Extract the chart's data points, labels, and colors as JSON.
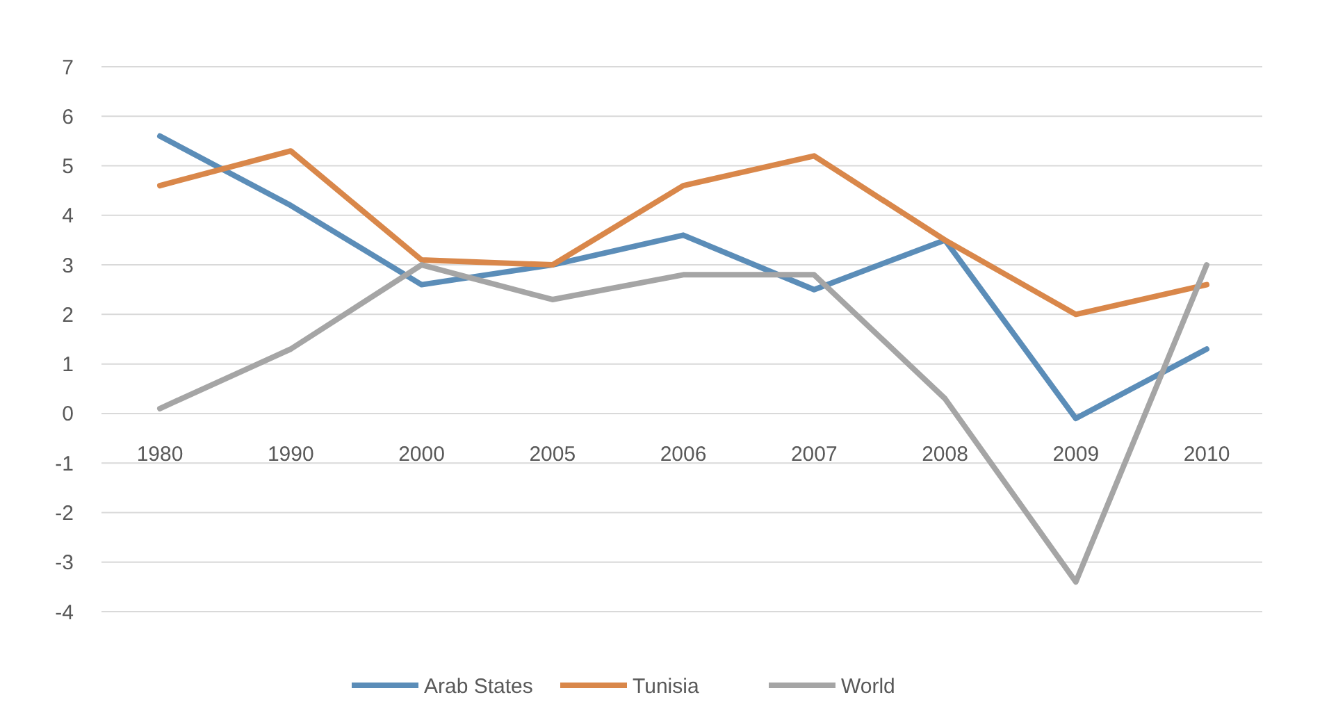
{
  "chart_data": {
    "type": "line",
    "categories": [
      "1980",
      "1990",
      "2000",
      "2005",
      "2006",
      "2007",
      "2008",
      "2009",
      "2010"
    ],
    "series": [
      {
        "name": "Arab States",
        "color": "#5b8db8",
        "values": [
          5.6,
          4.2,
          2.6,
          3.0,
          3.6,
          2.5,
          3.5,
          -0.1,
          1.3
        ]
      },
      {
        "name": "Tunisia",
        "color": "#d9874a",
        "values": [
          4.6,
          5.3,
          3.1,
          3.0,
          4.6,
          5.2,
          3.5,
          2.0,
          2.6
        ]
      },
      {
        "name": "World",
        "color": "#a5a5a5",
        "values": [
          0.1,
          1.3,
          3.0,
          2.3,
          2.8,
          2.8,
          0.3,
          -3.4,
          3.0
        ]
      }
    ],
    "ylim": [
      -4,
      7
    ],
    "yticks": [
      -4,
      -3,
      -2,
      -1,
      0,
      1,
      2,
      3,
      4,
      5,
      6,
      7
    ],
    "grid": "y",
    "legend": "bottom",
    "marker": "none",
    "line_style": "solid"
  }
}
